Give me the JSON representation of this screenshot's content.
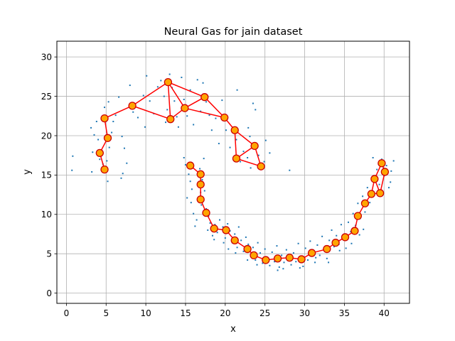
{
  "chart_data": {
    "type": "scatter",
    "title": "Neural Gas for jain dataset",
    "xlabel": "x",
    "ylabel": "y",
    "xlim": [
      -1.2,
      43.2
    ],
    "ylim": [
      -1.3,
      32.0
    ],
    "xticks": [
      0,
      5,
      10,
      15,
      20,
      25,
      30,
      35,
      40
    ],
    "yticks": [
      0,
      5,
      10,
      15,
      20,
      25,
      30
    ],
    "grid": true,
    "legend": "none",
    "colors": {
      "points": "#1f77b4",
      "edges": "#ff0000",
      "nodes_fill": "#ffa500",
      "nodes_edge": "#cc0000"
    },
    "series": [
      {
        "kind": "data-points",
        "points": [
          [
            0.8,
            17.4
          ],
          [
            0.7,
            15.6
          ],
          [
            3.2,
            15.4
          ],
          [
            3.3,
            17.9
          ],
          [
            3.5,
            20.1
          ],
          [
            3.1,
            21.0
          ],
          [
            3.8,
            21.8
          ],
          [
            4.0,
            19.5
          ],
          [
            4.2,
            17.0
          ],
          [
            4.6,
            16.4
          ],
          [
            5.2,
            14.2
          ],
          [
            5.1,
            16.8
          ],
          [
            5.4,
            18.5
          ],
          [
            5.7,
            20.4
          ],
          [
            5.9,
            21.8
          ],
          [
            6.2,
            22.6
          ],
          [
            4.8,
            23.6
          ],
          [
            5.3,
            24.3
          ],
          [
            6.6,
            24.9
          ],
          [
            7.0,
            19.9
          ],
          [
            7.3,
            18.4
          ],
          [
            7.1,
            15.2
          ],
          [
            6.9,
            14.6
          ],
          [
            7.6,
            16.5
          ],
          [
            8.0,
            26.4
          ],
          [
            8.4,
            23.0
          ],
          [
            9.0,
            22.3
          ],
          [
            9.7,
            25.1
          ],
          [
            9.9,
            21.1
          ],
          [
            10.1,
            27.6
          ],
          [
            10.5,
            24.4
          ],
          [
            11.0,
            22.8
          ],
          [
            11.5,
            26.2
          ],
          [
            11.9,
            27.0
          ],
          [
            12.3,
            25.0
          ],
          [
            12.7,
            23.3
          ],
          [
            12.5,
            21.7
          ],
          [
            13.0,
            27.8
          ],
          [
            13.3,
            26.1
          ],
          [
            13.6,
            24.4
          ],
          [
            13.9,
            22.4
          ],
          [
            14.1,
            21.1
          ],
          [
            14.5,
            27.4
          ],
          [
            14.8,
            24.6
          ],
          [
            15.2,
            22.5
          ],
          [
            15.6,
            25.8
          ],
          [
            16.0,
            21.4
          ],
          [
            16.5,
            27.1
          ],
          [
            16.9,
            23.1
          ],
          [
            17.2,
            26.7
          ],
          [
            17.6,
            24.3
          ],
          [
            18.0,
            22.6
          ],
          [
            18.3,
            20.7
          ],
          [
            18.8,
            22.2
          ],
          [
            19.2,
            19.0
          ],
          [
            19.6,
            24.5
          ],
          [
            20.1,
            20.7
          ],
          [
            20.6,
            18.5
          ],
          [
            21.0,
            17.0
          ],
          [
            21.4,
            19.5
          ],
          [
            21.9,
            16.7
          ],
          [
            22.3,
            18.0
          ],
          [
            22.8,
            17.2
          ],
          [
            23.1,
            19.9
          ],
          [
            23.5,
            24.1
          ],
          [
            23.8,
            23.3
          ],
          [
            24.2,
            17.5
          ],
          [
            24.7,
            15.8
          ],
          [
            25.1,
            19.4
          ],
          [
            25.6,
            17.8
          ],
          [
            21.5,
            25.8
          ],
          [
            22.9,
            21.0
          ],
          [
            24.9,
            16.7
          ],
          [
            28.1,
            15.6
          ],
          [
            23.2,
            15.9
          ],
          [
            14.8,
            17.2
          ],
          [
            15.0,
            16.3
          ],
          [
            15.4,
            15.1
          ],
          [
            15.6,
            14.2
          ],
          [
            15.8,
            13.2
          ],
          [
            15.2,
            12.1
          ],
          [
            15.7,
            11.5
          ],
          [
            16.0,
            10.1
          ],
          [
            16.4,
            9.3
          ],
          [
            16.2,
            8.5
          ],
          [
            16.9,
            12.8
          ],
          [
            16.8,
            15.8
          ],
          [
            17.3,
            17.1
          ],
          [
            17.1,
            14.4
          ],
          [
            17.4,
            13.0
          ],
          [
            17.0,
            11.2
          ],
          [
            17.6,
            10.7
          ],
          [
            17.9,
            9.8
          ],
          [
            18.1,
            8.9
          ],
          [
            17.8,
            8.0
          ],
          [
            18.4,
            7.3
          ],
          [
            18.7,
            8.7
          ],
          [
            19.0,
            7.7
          ],
          [
            19.3,
            9.3
          ],
          [
            19.7,
            8.4
          ],
          [
            20.0,
            7.0
          ],
          [
            20.3,
            8.8
          ],
          [
            20.6,
            7.9
          ],
          [
            20.9,
            6.4
          ],
          [
            21.2,
            7.5
          ],
          [
            21.5,
            5.8
          ],
          [
            21.7,
            8.4
          ],
          [
            22.0,
            6.7
          ],
          [
            22.3,
            5.3
          ],
          [
            22.6,
            7.1
          ],
          [
            22.9,
            6.2
          ],
          [
            23.2,
            4.8
          ],
          [
            23.5,
            5.8
          ],
          [
            23.8,
            4.2
          ],
          [
            24.1,
            6.4
          ],
          [
            24.4,
            5.1
          ],
          [
            24.7,
            3.8
          ],
          [
            25.0,
            5.6
          ],
          [
            25.3,
            4.5
          ],
          [
            25.6,
            3.5
          ],
          [
            25.9,
            5.2
          ],
          [
            26.2,
            4.0
          ],
          [
            26.5,
            6.0
          ],
          [
            26.8,
            3.3
          ],
          [
            27.1,
            4.8
          ],
          [
            27.4,
            3.9
          ],
          [
            27.7,
            5.5
          ],
          [
            28.0,
            4.3
          ],
          [
            28.3,
            3.6
          ],
          [
            28.6,
            5.1
          ],
          [
            28.9,
            4.0
          ],
          [
            29.2,
            6.3
          ],
          [
            29.5,
            4.6
          ],
          [
            29.8,
            3.4
          ],
          [
            30.1,
            5.7
          ],
          [
            30.4,
            4.2
          ],
          [
            30.7,
            6.6
          ],
          [
            31.0,
            5.0
          ],
          [
            31.3,
            3.9
          ],
          [
            31.6,
            6.1
          ],
          [
            31.9,
            4.8
          ],
          [
            32.2,
            7.2
          ],
          [
            32.5,
            5.4
          ],
          [
            32.8,
            4.4
          ],
          [
            33.1,
            6.7
          ],
          [
            33.4,
            8.0
          ],
          [
            33.7,
            5.9
          ],
          [
            34.0,
            7.3
          ],
          [
            34.3,
            6.2
          ],
          [
            34.6,
            8.7
          ],
          [
            34.9,
            7.1
          ],
          [
            35.2,
            5.7
          ],
          [
            35.5,
            9.0
          ],
          [
            35.8,
            7.8
          ],
          [
            36.1,
            10.1
          ],
          [
            36.4,
            8.6
          ],
          [
            36.7,
            11.4
          ],
          [
            37.0,
            9.5
          ],
          [
            37.3,
            12.3
          ],
          [
            37.6,
            10.3
          ],
          [
            37.9,
            13.4
          ],
          [
            38.2,
            11.5
          ],
          [
            38.5,
            14.6
          ],
          [
            38.8,
            12.6
          ],
          [
            39.1,
            15.7
          ],
          [
            39.4,
            13.8
          ],
          [
            39.7,
            17.0
          ],
          [
            40.0,
            14.9
          ],
          [
            40.3,
            16.2
          ],
          [
            40.6,
            13.4
          ],
          [
            40.9,
            15.5
          ],
          [
            41.2,
            16.8
          ],
          [
            40.8,
            14.1
          ],
          [
            38.6,
            17.2
          ],
          [
            39.3,
            16.4
          ],
          [
            37.4,
            8.1
          ],
          [
            36.9,
            7.4
          ],
          [
            35.9,
            6.3
          ],
          [
            34.4,
            5.4
          ],
          [
            33.0,
            3.9
          ],
          [
            26.6,
            2.9
          ],
          [
            27.3,
            3.1
          ],
          [
            24.0,
            3.6
          ],
          [
            22.8,
            4.2
          ],
          [
            21.3,
            5.1
          ],
          [
            19.8,
            6.4
          ],
          [
            18.6,
            6.8
          ],
          [
            20.4,
            5.6
          ],
          [
            29.4,
            3.2
          ],
          [
            31.4,
            4.5
          ]
        ]
      },
      {
        "kind": "neural-gas-nodes",
        "nodes": [
          [
            4.8,
            15.7
          ],
          [
            4.2,
            17.8
          ],
          [
            5.2,
            19.7
          ],
          [
            4.8,
            22.2
          ],
          [
            8.3,
            23.8
          ],
          [
            13.1,
            22.1
          ],
          [
            12.8,
            26.8
          ],
          [
            14.9,
            23.5
          ],
          [
            17.4,
            24.9
          ],
          [
            19.9,
            22.3
          ],
          [
            21.2,
            20.7
          ],
          [
            21.4,
            17.1
          ],
          [
            23.7,
            18.7
          ],
          [
            24.5,
            16.1
          ],
          [
            15.6,
            16.2
          ],
          [
            16.9,
            15.1
          ],
          [
            16.9,
            13.8
          ],
          [
            16.9,
            11.9
          ],
          [
            17.6,
            10.2
          ],
          [
            18.6,
            8.2
          ],
          [
            20.1,
            8.0
          ],
          [
            21.2,
            6.7
          ],
          [
            22.8,
            5.6
          ],
          [
            23.6,
            4.8
          ],
          [
            25.1,
            4.2
          ],
          [
            26.6,
            4.4
          ],
          [
            28.1,
            4.5
          ],
          [
            29.6,
            4.3
          ],
          [
            30.9,
            5.1
          ],
          [
            32.8,
            5.6
          ],
          [
            33.9,
            6.4
          ],
          [
            35.1,
            7.1
          ],
          [
            36.3,
            7.9
          ],
          [
            36.7,
            9.8
          ],
          [
            37.6,
            11.4
          ],
          [
            38.4,
            12.6
          ],
          [
            38.8,
            14.5
          ],
          [
            39.5,
            12.7
          ],
          [
            40.1,
            15.4
          ],
          [
            39.7,
            16.5
          ]
        ],
        "edges": [
          [
            0,
            1
          ],
          [
            1,
            2
          ],
          [
            2,
            3
          ],
          [
            3,
            4
          ],
          [
            4,
            5
          ],
          [
            4,
            6
          ],
          [
            5,
            6
          ],
          [
            5,
            7
          ],
          [
            6,
            7
          ],
          [
            6,
            8
          ],
          [
            7,
            8
          ],
          [
            7,
            9
          ],
          [
            8,
            9
          ],
          [
            9,
            10
          ],
          [
            10,
            11
          ],
          [
            10,
            12
          ],
          [
            11,
            12
          ],
          [
            12,
            13
          ],
          [
            11,
            13
          ],
          [
            14,
            15
          ],
          [
            15,
            16
          ],
          [
            16,
            17
          ],
          [
            17,
            18
          ],
          [
            18,
            19
          ],
          [
            19,
            20
          ],
          [
            20,
            21
          ],
          [
            21,
            22
          ],
          [
            22,
            23
          ],
          [
            23,
            24
          ],
          [
            24,
            25
          ],
          [
            25,
            26
          ],
          [
            26,
            27
          ],
          [
            27,
            28
          ],
          [
            28,
            29
          ],
          [
            29,
            30
          ],
          [
            30,
            31
          ],
          [
            31,
            32
          ],
          [
            32,
            33
          ],
          [
            33,
            34
          ],
          [
            34,
            35
          ],
          [
            35,
            36
          ],
          [
            36,
            37
          ],
          [
            35,
            37
          ],
          [
            37,
            38
          ],
          [
            36,
            39
          ],
          [
            38,
            39
          ]
        ]
      }
    ]
  }
}
